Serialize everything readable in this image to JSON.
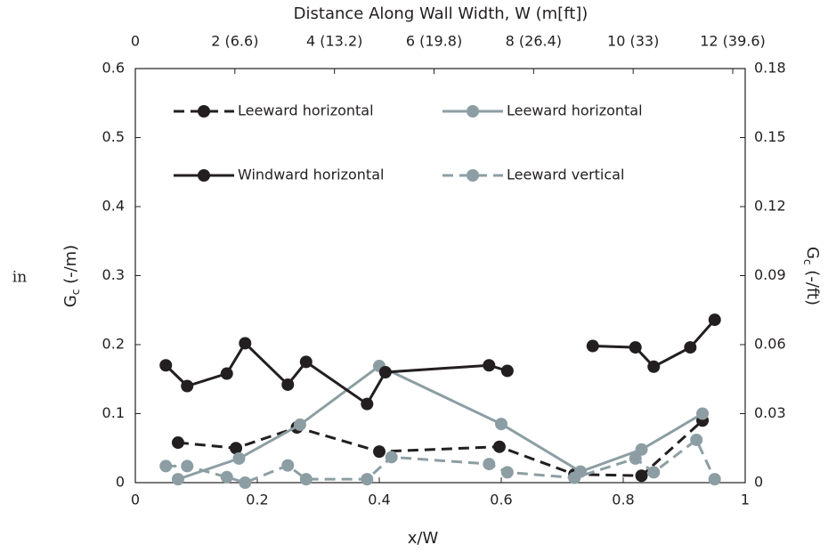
{
  "chart_data": {
    "type": "line",
    "annotation": "in",
    "xlabel": "x/W",
    "x2label": "Distance Along Wall Width, W (m[ft])",
    "ylabel": [
      "G",
      "c",
      " (-/m)"
    ],
    "y2label": [
      "G",
      "c",
      " (-/ft)"
    ],
    "xlim": [
      0,
      1
    ],
    "xticks": [
      0,
      0.2,
      0.4,
      0.6,
      0.8,
      1
    ],
    "x2lim": [
      0,
      12.25
    ],
    "x2ticks": [
      0,
      {
        "value": 2,
        "label": "2 (6.6)"
      },
      {
        "value": 4,
        "label": "4 (13.2)"
      },
      {
        "value": 6,
        "label": "6 (19.8)"
      },
      {
        "value": 8,
        "label": "8 (26.4)"
      },
      {
        "value": 10,
        "label": "10 (33)"
      },
      {
        "value": 12,
        "label": "12 (39.6)"
      }
    ],
    "ylim": [
      0,
      0.6
    ],
    "yticks": [
      0,
      0.1,
      0.2,
      0.3,
      0.4,
      0.5,
      0.6
    ],
    "y2lim": [
      0,
      0.18
    ],
    "y2ticks": [
      0,
      0.03,
      0.06,
      0.09,
      0.12,
      0.15,
      0.18
    ],
    "grid": false,
    "series": [
      {
        "name": "Leeward horizontal",
        "color": "#231f20",
        "dashed": true,
        "x": [
          0.07,
          0.165,
          0.265,
          0.4,
          0.597,
          0.72,
          0.83,
          0.93
        ],
        "values": [
          0.058,
          0.05,
          0.08,
          0.045,
          0.052,
          0.012,
          0.01,
          0.09
        ]
      },
      {
        "name": "Leeward horizontal",
        "color": "#8c9ea3",
        "dashed": false,
        "x": [
          0.07,
          0.17,
          0.27,
          0.4,
          0.6,
          0.73,
          0.83,
          0.93
        ],
        "values": [
          0.005,
          0.035,
          0.084,
          0.169,
          0.085,
          0.016,
          0.048,
          0.1
        ]
      },
      {
        "name": "Windward horizontal",
        "color": "#231f20",
        "dashed": false,
        "x": [
          0.05,
          0.085,
          0.15,
          0.18,
          0.25,
          0.28,
          0.38,
          0.41,
          0.58,
          0.61,
          0.68,
          0.75,
          0.82,
          0.85,
          0.91,
          0.95
        ],
        "values": [
          0.17,
          0.14,
          0.158,
          0.202,
          0.142,
          0.175,
          0.114,
          0.16,
          0.17,
          0.162,
          null,
          0.198,
          0.196,
          0.168,
          0.196,
          0.236
        ]
      },
      {
        "name": "Leeward vertical",
        "color": "#8c9ea3",
        "dashed": true,
        "x": [
          0.05,
          0.085,
          0.15,
          0.18,
          0.25,
          0.28,
          0.38,
          0.42,
          0.58,
          0.61,
          0.72,
          0.82,
          0.85,
          0.92,
          0.95
        ],
        "values": [
          0.024,
          0.024,
          0.008,
          0,
          0.025,
          0.005,
          0.005,
          0.037,
          0.027,
          0.015,
          0.007,
          0.035,
          0.015,
          0.062,
          0.005
        ]
      }
    ]
  }
}
